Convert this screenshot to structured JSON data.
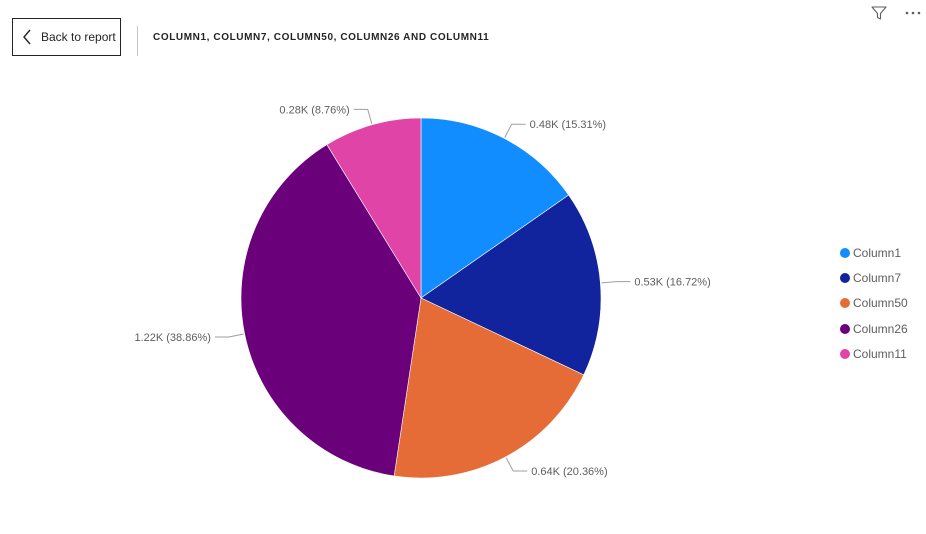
{
  "header": {
    "back_label": "Back to report",
    "visual_title": "COLUMN1, COLUMN7, COLUMN50, COLUMN26 AND COLUMN11"
  },
  "icons": {
    "back": "chevron-left-icon",
    "filter": "filter-icon",
    "more": "more-options-icon"
  },
  "chart_data": {
    "type": "pie",
    "title": "COLUMN1, COLUMN7, COLUMN50, COLUMN26 AND COLUMN11",
    "legend_position": "right",
    "slices": [
      {
        "name": "Column1",
        "value": 0.48,
        "percent": 15.31,
        "label": "0.48K (15.31%)",
        "color": "#118DFF"
      },
      {
        "name": "Column7",
        "value": 0.53,
        "percent": 16.72,
        "label": "0.53K (16.72%)",
        "color": "#12239E"
      },
      {
        "name": "Column50",
        "value": 0.64,
        "percent": 20.36,
        "label": "0.64K (20.36%)",
        "color": "#E66C37"
      },
      {
        "name": "Column26",
        "value": 1.22,
        "percent": 38.86,
        "label": "1.22K (38.86%)",
        "color": "#6B007B"
      },
      {
        "name": "Column11",
        "value": 0.28,
        "percent": 8.76,
        "label": "0.28K (8.76%)",
        "color": "#E044A7"
      }
    ]
  }
}
